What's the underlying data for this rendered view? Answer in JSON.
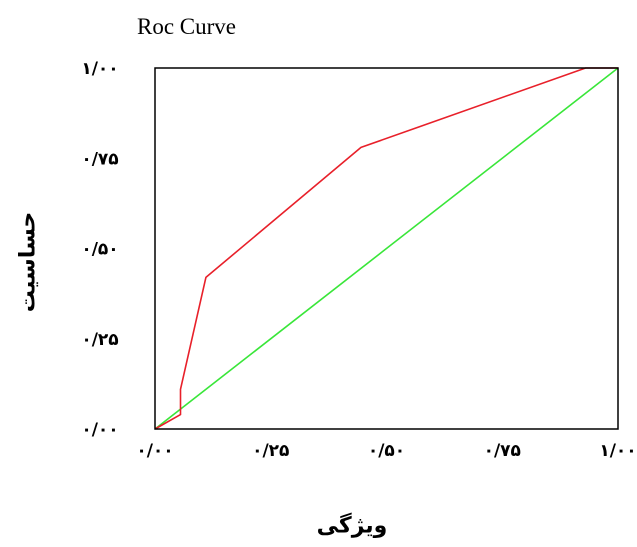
{
  "chart_data": {
    "type": "line",
    "title": "Roc Curve",
    "xlabel": "ویژگی",
    "ylabel": "حساسیت",
    "xlim": [
      0,
      1
    ],
    "ylim": [
      0,
      1
    ],
    "x_ticks": [
      0,
      0.25,
      0.5,
      0.75,
      1
    ],
    "y_ticks": [
      0,
      0.25,
      0.5,
      0.75,
      1
    ],
    "x_tick_labels": [
      "۰/۰۰",
      "۰/۲۵",
      "۰/۵۰",
      "۰/۷۵",
      "۱/۰۰"
    ],
    "y_tick_labels": [
      "۰/۰۰",
      "۰/۲۵",
      "۰/۵۰",
      "۰/۷۵",
      "۱/۰۰"
    ],
    "grid": false,
    "series": [
      {
        "color": "#e8202a",
        "x": [
          0,
          0.055,
          0.055,
          0.11,
          0.445,
          0.93,
          1.0
        ],
        "y": [
          0,
          0.04,
          0.11,
          0.42,
          0.78,
          1.0,
          1.0
        ]
      },
      {
        "color": "#39e639",
        "x": [
          0,
          1
        ],
        "y": [
          0,
          1
        ]
      }
    ]
  }
}
